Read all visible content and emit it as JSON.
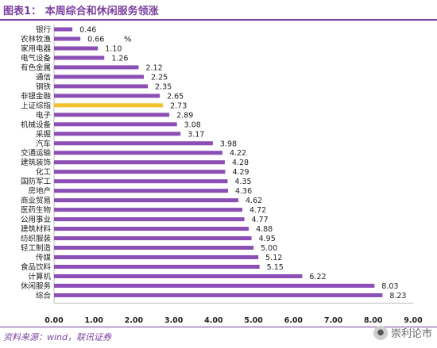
{
  "title": "图表1： 本周综合和休闲服务领涨",
  "source": "资料来源：wind，联讯证券",
  "watermark": "崇利论市",
  "chart_data": {
    "type": "bar",
    "orientation": "horizontal",
    "unit_label": "%",
    "categories": [
      "银行",
      "农林牧渔",
      "家用电器",
      "电气设备",
      "有色金属",
      "通信",
      "钢铁",
      "非银金融",
      "上证综指",
      "电子",
      "机械设备",
      "采掘",
      "汽车",
      "交通运输",
      "建筑装饰",
      "化工",
      "国防军工",
      "房地产",
      "商业贸易",
      "医药生物",
      "公用事业",
      "建筑材料",
      "纺织服装",
      "轻工制造",
      "传媒",
      "食品饮料",
      "计算机",
      "休闲服务",
      "综合"
    ],
    "values": [
      0.46,
      0.66,
      1.1,
      1.26,
      2.12,
      2.25,
      2.35,
      2.65,
      2.73,
      2.89,
      3.08,
      3.17,
      3.98,
      4.22,
      4.28,
      4.29,
      4.35,
      4.36,
      4.62,
      4.72,
      4.77,
      4.88,
      4.95,
      5.0,
      5.12,
      5.15,
      6.22,
      8.03,
      8.23
    ],
    "value_labels": [
      "0.46",
      "0.66",
      "1.10",
      "1.26",
      "2.12",
      "2.25",
      "2.35",
      "2.65",
      "2.73",
      "2.89",
      "3.08",
      "3.17",
      "3.98",
      "4.22",
      "4.28",
      "4.29",
      "4.35",
      "4.36",
      "4.62",
      "4.72",
      "4.77",
      "4.88",
      "4.95",
      "5.00",
      "5.12",
      "5.15",
      "6.22",
      "8.03",
      "8.23"
    ],
    "highlight_category": "上证综指",
    "xlim": [
      0,
      9
    ],
    "xticks": [
      "0.00",
      "1.00",
      "2.00",
      "3.00",
      "4.00",
      "5.00",
      "6.00",
      "7.00",
      "8.00",
      "9.00"
    ],
    "colors": {
      "bar": "#8b4fb5",
      "highlight": "#f2c12e",
      "axis": "#bfbfbf"
    },
    "grid": false,
    "legend": "none"
  }
}
